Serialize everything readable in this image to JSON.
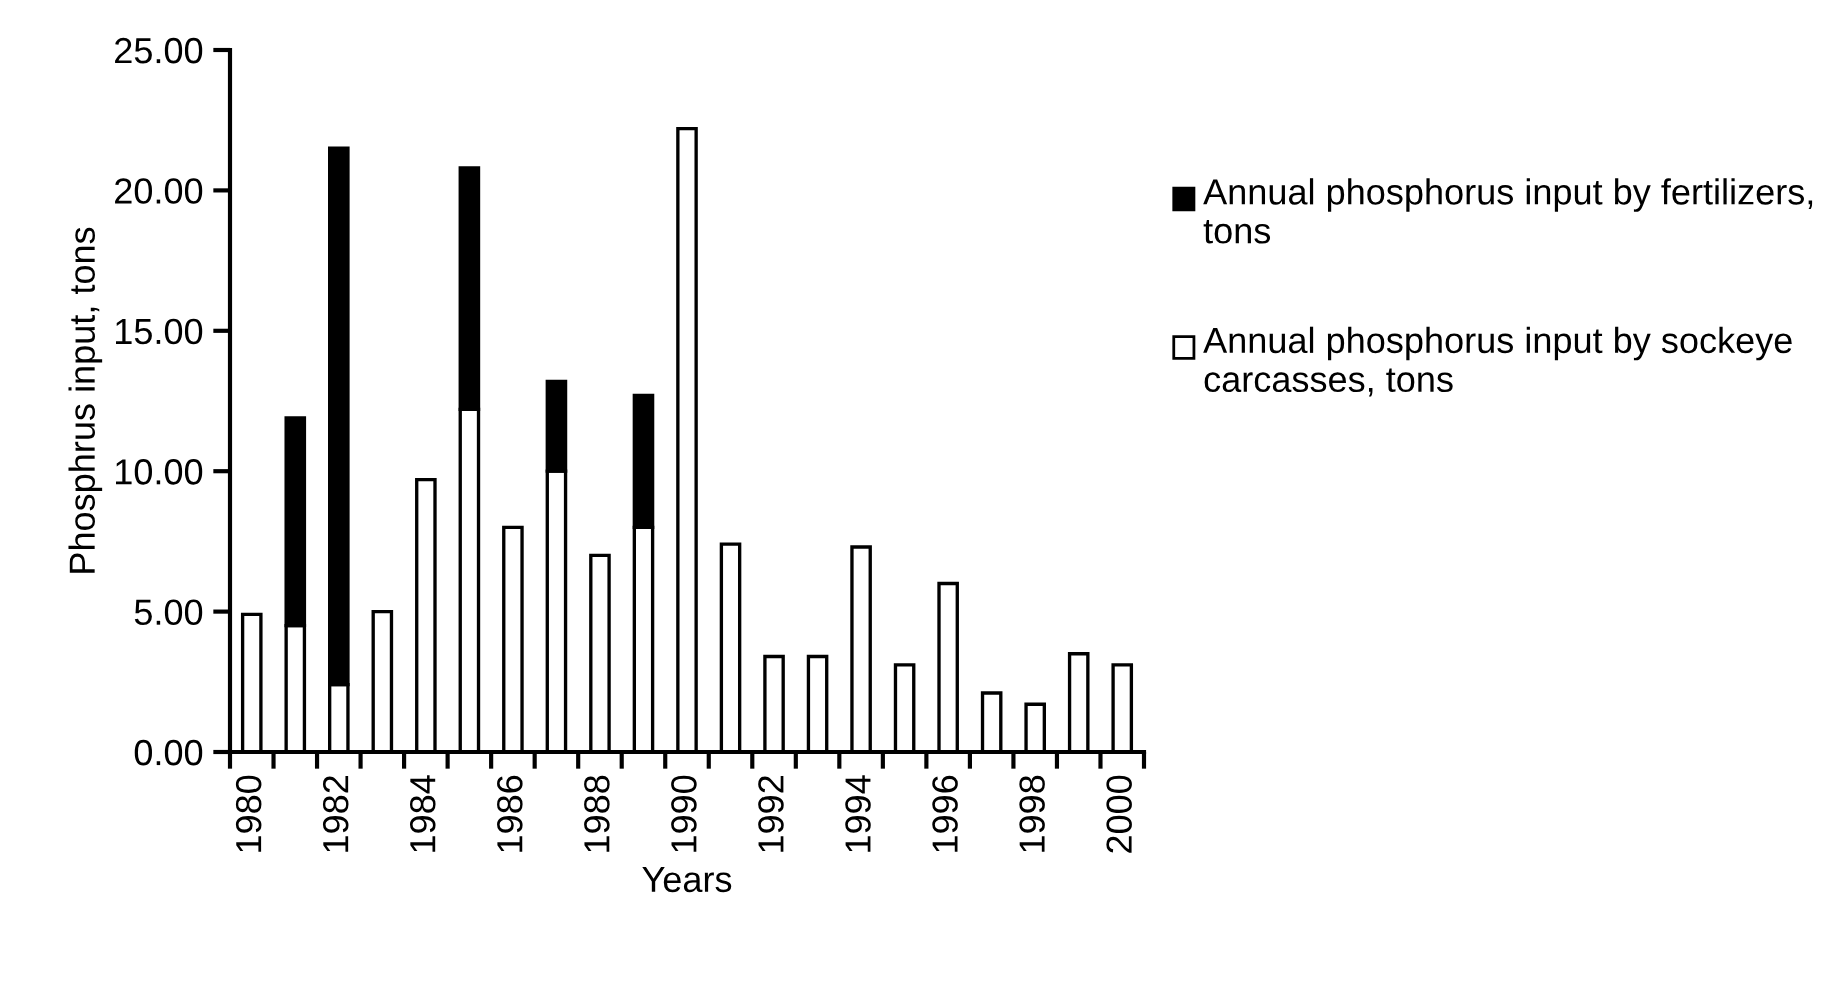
{
  "chart_data": {
    "type": "bar",
    "stacked": true,
    "xlabel": "Years",
    "ylabel": "Phosphrus input, tons",
    "categories": [
      "1980",
      null,
      "1982",
      null,
      "1984",
      null,
      "1986",
      null,
      "1988",
      null,
      "1990",
      null,
      "1992",
      null,
      "1994",
      null,
      "1996",
      null,
      "1998",
      null,
      "2000"
    ],
    "series": [
      {
        "name": "Annual phosphorus input by sockeye carcasses, tons",
        "color": "#ffffff",
        "values": [
          4.9,
          4.5,
          2.4,
          5.0,
          9.7,
          12.2,
          8.0,
          10.0,
          7.0,
          8.0,
          22.2,
          7.4,
          3.4,
          3.4,
          7.3,
          3.1,
          6.0,
          2.1,
          1.7,
          3.5,
          3.1
        ]
      },
      {
        "name": "Annual phosphorus input by fertilizers, tons",
        "color": "#000000",
        "values": [
          null,
          7.4,
          19.1,
          null,
          null,
          8.6,
          null,
          3.2,
          null,
          4.7,
          null,
          null,
          null,
          null,
          null,
          null,
          null,
          null,
          null,
          null,
          null
        ]
      }
    ],
    "ylim": [
      0,
      25
    ],
    "yticks": [
      {
        "value": 0,
        "label": "0.00"
      },
      {
        "value": 5,
        "label": "5.00"
      },
      {
        "value": 10,
        "label": "10.00"
      },
      {
        "value": 15,
        "label": "15.00"
      },
      {
        "value": 20,
        "label": "20.00"
      },
      {
        "value": 25,
        "label": "25.00"
      }
    ],
    "legend": "right",
    "grid": false
  }
}
